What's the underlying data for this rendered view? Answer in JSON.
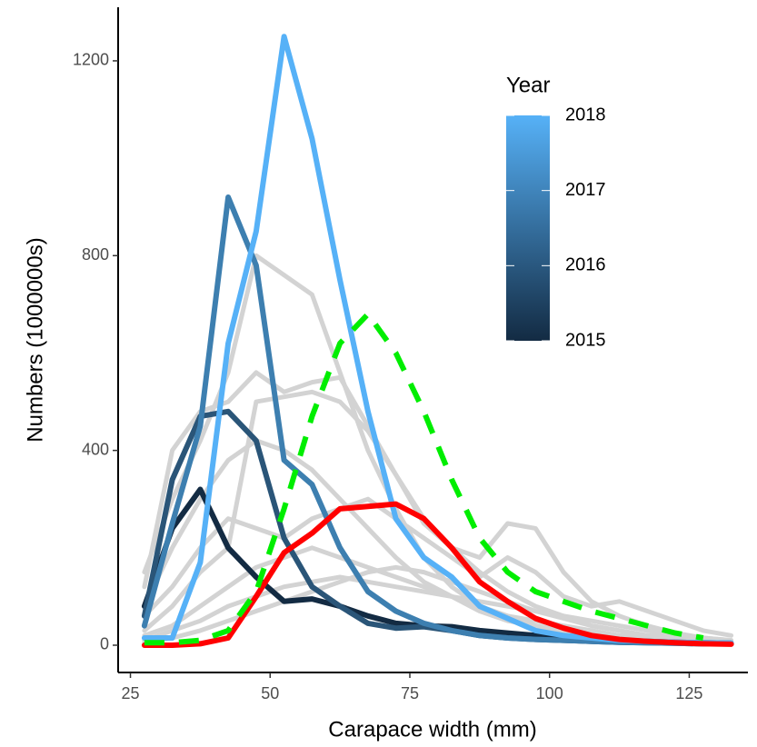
{
  "chart_data": {
    "type": "line",
    "x_label": "Carapace width (mm)",
    "y_label": "Numbers (1000000s)",
    "x": [
      27.5,
      32.5,
      37.5,
      42.5,
      47.5,
      52.5,
      57.5,
      62.5,
      67.5,
      72.5,
      77.5,
      82.5,
      87.5,
      92.5,
      97.5,
      102.5,
      107.5,
      112.5,
      117.5,
      122.5,
      127.5,
      132.5
    ],
    "xlim": [
      22.8,
      135.5
    ],
    "xticks": [
      25,
      50,
      75,
      100,
      125
    ],
    "ylim": [
      -56,
      1310
    ],
    "yticks": [
      0,
      400,
      800,
      1200
    ],
    "legend": {
      "title": "Year",
      "range": [
        2015,
        2018
      ],
      "ticks": [
        2015,
        2016,
        2017,
        2018
      ],
      "colors": [
        "#132B43",
        "#56B1F7"
      ]
    },
    "series": [
      {
        "color": "#d3d3d3",
        "values": [
          150,
          300,
          420,
          560,
          800,
          760,
          720,
          560,
          400,
          280,
          180,
          120,
          80,
          60,
          40,
          30,
          20,
          15,
          10,
          8,
          6,
          5
        ]
      },
      {
        "color": "#d3d3d3",
        "values": [
          120,
          400,
          480,
          500,
          560,
          520,
          540,
          550,
          450,
          350,
          250,
          200,
          180,
          250,
          240,
          150,
          90,
          60,
          40,
          25,
          15,
          10
        ]
      },
      {
        "color": "#d3d3d3",
        "values": [
          60,
          120,
          200,
          260,
          240,
          220,
          260,
          280,
          300,
          260,
          220,
          180,
          140,
          180,
          150,
          100,
          80,
          90,
          70,
          50,
          30,
          20
        ]
      },
      {
        "color": "#d3d3d3",
        "values": [
          30,
          80,
          150,
          200,
          500,
          510,
          520,
          500,
          440,
          350,
          260,
          200,
          150,
          110,
          80,
          60,
          40,
          30,
          20,
          15,
          10,
          8
        ]
      },
      {
        "color": "#d3d3d3",
        "values": [
          20,
          40,
          80,
          120,
          160,
          180,
          200,
          180,
          160,
          140,
          120,
          100,
          80,
          60,
          50,
          40,
          30,
          20,
          15,
          10,
          8,
          6
        ]
      },
      {
        "color": "#d3d3d3",
        "values": [
          10,
          30,
          50,
          80,
          100,
          120,
          130,
          140,
          130,
          120,
          110,
          100,
          90,
          80,
          70,
          60,
          50,
          40,
          30,
          20,
          15,
          10
        ]
      },
      {
        "color": "#d3d3d3",
        "values": [
          80,
          200,
          300,
          380,
          420,
          400,
          360,
          300,
          240,
          180,
          130,
          100,
          70,
          50,
          40,
          30,
          20,
          15,
          10,
          8,
          6,
          5
        ]
      },
      {
        "color": "#d3d3d3",
        "values": [
          5,
          15,
          30,
          50,
          70,
          90,
          110,
          130,
          150,
          160,
          150,
          130,
          110,
          90,
          70,
          55,
          40,
          30,
          20,
          15,
          10,
          8
        ]
      },
      {
        "color": "#132B43",
        "values": [
          80,
          240,
          320,
          200,
          140,
          90,
          95,
          80,
          60,
          45,
          40,
          38,
          30,
          25,
          20,
          15,
          12,
          10,
          8,
          6,
          5,
          4
        ]
      },
      {
        "color": "#2A5578",
        "values": [
          60,
          340,
          470,
          480,
          420,
          220,
          120,
          80,
          45,
          35,
          38,
          30,
          20,
          15,
          12,
          10,
          8,
          6,
          5,
          4,
          3,
          3
        ]
      },
      {
        "color": "#3D7FB0",
        "values": [
          40,
          250,
          450,
          920,
          780,
          380,
          330,
          200,
          110,
          70,
          45,
          30,
          20,
          15,
          12,
          10,
          8,
          6,
          5,
          4,
          3,
          3
        ]
      },
      {
        "color": "#56B1F7",
        "values": [
          15,
          15,
          170,
          620,
          850,
          1250,
          1040,
          750,
          480,
          260,
          180,
          140,
          80,
          55,
          30,
          20,
          15,
          10,
          8,
          6,
          5,
          4
        ]
      },
      {
        "color": "#ff0000",
        "values": [
          0,
          0,
          3,
          15,
          100,
          190,
          230,
          280,
          285,
          290,
          260,
          200,
          130,
          90,
          55,
          35,
          20,
          12,
          8,
          5,
          3,
          2
        ]
      },
      {
        "color": "#00ee00",
        "style": "dashed",
        "values": [
          5,
          5,
          10,
          30,
          110,
          280,
          470,
          620,
          680,
          600,
          480,
          340,
          220,
          150,
          110,
          90,
          70,
          55,
          40,
          25,
          15,
          null
        ]
      }
    ]
  }
}
